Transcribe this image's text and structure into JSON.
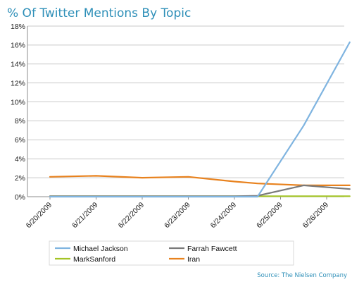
{
  "chart_data": {
    "type": "line",
    "title": "% Of Twitter Mentions By Topic",
    "xlabel": "",
    "ylabel": "",
    "x": [
      "6/20/2009",
      "6/21/2009",
      "6/22/2009",
      "6/23/2009",
      "6/24/2009",
      "6/25/2009",
      "6/26/2009"
    ],
    "y_tick_labels": [
      "0%",
      "2%",
      "4%",
      "6%",
      "8%",
      "10%",
      "12%",
      "14%",
      "16%",
      "18%"
    ],
    "ylim": [
      0,
      18
    ],
    "y_unit": "percent",
    "grid": "horizontal",
    "legend_position": "bottom",
    "source": "Source: The Nielsen Company",
    "series": [
      {
        "name": "Michael Jackson",
        "color": "#7fb4e0",
        "points": [
          {
            "x": "6/20/2009",
            "y": 0.0
          },
          {
            "x": "6/21/2009",
            "y": 0.0
          },
          {
            "x": "6/22/2009",
            "y": 0.0
          },
          {
            "x": "6/23/2009",
            "y": 0.0
          },
          {
            "x": "6/24/2009",
            "y": 0.0
          },
          {
            "x": "6/24/2009 12:00",
            "y": 0.0
          },
          {
            "x": "6/25/2009 12:00",
            "y": 7.5
          },
          {
            "x": "6/26/2009 12:00",
            "y": 16.3
          }
        ]
      },
      {
        "name": "Farrah Fawcett",
        "color": "#7a7a7a",
        "points": [
          {
            "x": "6/20/2009",
            "y": 0.05
          },
          {
            "x": "6/21/2009",
            "y": 0.05
          },
          {
            "x": "6/22/2009",
            "y": 0.05
          },
          {
            "x": "6/23/2009",
            "y": 0.05
          },
          {
            "x": "6/24/2009",
            "y": 0.05
          },
          {
            "x": "6/24/2009 12:00",
            "y": 0.1
          },
          {
            "x": "6/25/2009 12:00",
            "y": 1.2
          },
          {
            "x": "6/26/2009 12:00",
            "y": 0.8
          }
        ]
      },
      {
        "name": "MarkSanford",
        "color": "#a4c426",
        "points": [
          {
            "x": "6/20/2009",
            "y": 0.05
          },
          {
            "x": "6/21/2009",
            "y": 0.05
          },
          {
            "x": "6/22/2009",
            "y": 0.05
          },
          {
            "x": "6/23/2009",
            "y": 0.05
          },
          {
            "x": "6/24/2009",
            "y": 0.05
          },
          {
            "x": "6/24/2009 12:00",
            "y": 0.05
          },
          {
            "x": "6/25/2009 12:00",
            "y": 0.05
          },
          {
            "x": "6/26/2009 12:00",
            "y": 0.05
          }
        ]
      },
      {
        "name": "Iran",
        "color": "#e8821e",
        "points": [
          {
            "x": "6/20/2009",
            "y": 2.1
          },
          {
            "x": "6/21/2009",
            "y": 2.2
          },
          {
            "x": "6/22/2009",
            "y": 2.0
          },
          {
            "x": "6/23/2009",
            "y": 2.1
          },
          {
            "x": "6/24/2009",
            "y": 1.6
          },
          {
            "x": "6/24/2009 12:00",
            "y": 1.4
          },
          {
            "x": "6/25/2009 12:00",
            "y": 1.2
          },
          {
            "x": "6/26/2009 12:00",
            "y": 1.2
          }
        ]
      }
    ]
  }
}
